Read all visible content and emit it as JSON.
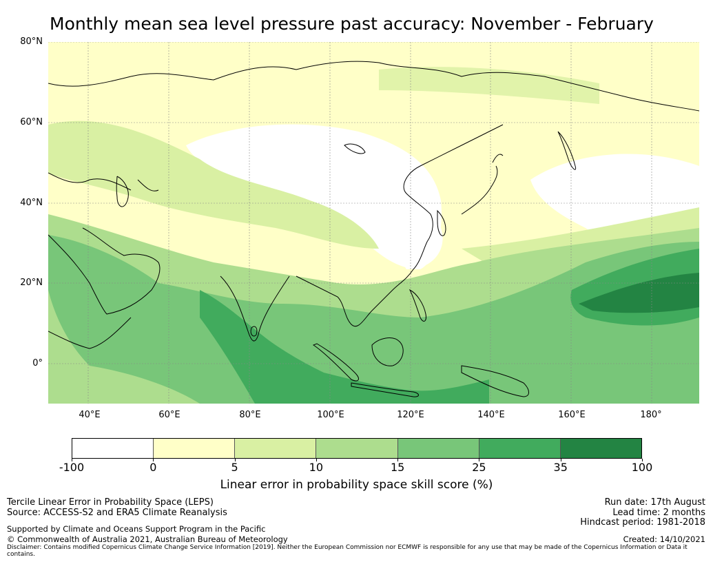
{
  "title": "Monthly mean sea level pressure past accuracy: November - February",
  "lat_labels": [
    "80°N",
    "60°N",
    "40°N",
    "20°N",
    "0°"
  ],
  "lon_labels": [
    "40°E",
    "60°E",
    "80°E",
    "100°E",
    "120°E",
    "140°E",
    "160°E",
    "180°"
  ],
  "colorbar": {
    "colors": [
      "#ffffff",
      "#ffffc8",
      "#d9f0a3",
      "#addd8e",
      "#78c679",
      "#41ab5d",
      "#238443"
    ],
    "tick_labels": [
      "-100",
      "0",
      "5",
      "10",
      "15",
      "25",
      "35",
      "100"
    ],
    "label": "Linear error in probability space skill score (%)"
  },
  "footer": {
    "left_line1": "Tercile Linear Error in Probability Space (LEPS)",
    "left_line2": "Source: ACCESS-S2 and ERA5 Climate Reanalysis",
    "left_line3": "Supported by Climate and Oceans Support Program in the Pacific",
    "left_line4": "© Commonwealth of Australia 2021, Australian Bureau of Meteorology",
    "right_line1": "Run date: 17th August",
    "right_line2": "Lead time: 2 months",
    "right_line3": "Hindcast period: 1981-2018",
    "right_line4": "Created: 14/10/2021",
    "disclaimer": "Disclaimer: Contains modified Copernicus Climate Change Service Information [2019]. Neither the European Commission nor ECMWF is responsible for any use that may be made of the Copernicus Information or Data it contains."
  }
}
